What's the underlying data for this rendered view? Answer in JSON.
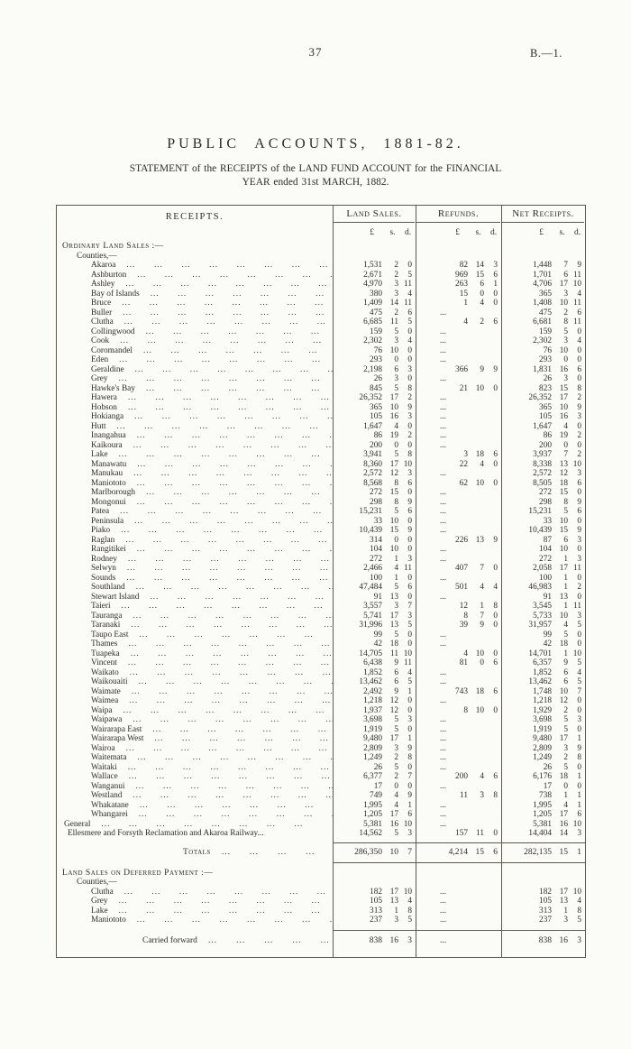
{
  "page": {
    "number": "37",
    "doc_ref": "B.—1."
  },
  "title": "PUBLIC ACCOUNTS, 1881-82.",
  "subtitle_line1": "STATEMENT of the RECEIPTS of the LAND FUND ACCOUNT for the FINANCIAL",
  "subtitle_line2": "YEAR ended 31st MARCH, 1882.",
  "table": {
    "receipts_header": "RECEIPTS.",
    "groups": [
      "Land Sales.",
      "Refunds.",
      "Net Receipts."
    ],
    "currency": [
      "£",
      "s.",
      "d."
    ],
    "empty_dots": "...",
    "dot_leader": "...  ...  ...  ...  ...  ...  ...  ...",
    "rows": [
      {
        "t": "h",
        "l": "Ordinary Land Sales :—",
        "cls": "ind-h",
        "sc": true
      },
      {
        "t": "s",
        "l": "Counties,—",
        "cls": "ind-s"
      },
      {
        "t": "r",
        "l": "Akaroa",
        "ls": [
          "1,531",
          "2",
          "0"
        ],
        "rf": [
          "82",
          "14",
          "3"
        ],
        "nt": [
          "1,448",
          "7",
          "9"
        ]
      },
      {
        "t": "r",
        "l": "Ashburton",
        "ls": [
          "2,671",
          "2",
          "5"
        ],
        "rf": [
          "969",
          "15",
          "6"
        ],
        "nt": [
          "1,701",
          "6",
          "11"
        ]
      },
      {
        "t": "r",
        "l": "Ashley",
        "ls": [
          "4,970",
          "3",
          "11"
        ],
        "rf": [
          "263",
          "6",
          "1"
        ],
        "nt": [
          "4,706",
          "17",
          "10"
        ]
      },
      {
        "t": "r",
        "l": "Bay of Islands",
        "ls": [
          "380",
          "3",
          "4"
        ],
        "rf": [
          "15",
          "0",
          "0"
        ],
        "nt": [
          "365",
          "3",
          "4"
        ]
      },
      {
        "t": "r",
        "l": "Bruce",
        "ls": [
          "1,409",
          "14",
          "11"
        ],
        "rf": [
          "1",
          "4",
          "0"
        ],
        "nt": [
          "1,408",
          "10",
          "11"
        ]
      },
      {
        "t": "r",
        "l": "Buller",
        "ls": [
          "475",
          "2",
          "6"
        ],
        "rf": null,
        "nt": [
          "475",
          "2",
          "6"
        ]
      },
      {
        "t": "r",
        "l": "Clutha",
        "ls": [
          "6,685",
          "11",
          "5"
        ],
        "rf": [
          "4",
          "2",
          "6"
        ],
        "nt": [
          "6,681",
          "8",
          "11"
        ]
      },
      {
        "t": "r",
        "l": "Collingwood",
        "ls": [
          "159",
          "5",
          "0"
        ],
        "rf": null,
        "nt": [
          "159",
          "5",
          "0"
        ]
      },
      {
        "t": "r",
        "l": "Cook",
        "ls": [
          "2,302",
          "3",
          "4"
        ],
        "rf": null,
        "nt": [
          "2,302",
          "3",
          "4"
        ]
      },
      {
        "t": "r",
        "l": "Coromandel",
        "ls": [
          "76",
          "10",
          "0"
        ],
        "rf": null,
        "nt": [
          "76",
          "10",
          "0"
        ]
      },
      {
        "t": "r",
        "l": "Eden",
        "ls": [
          "293",
          "0",
          "0"
        ],
        "rf": null,
        "nt": [
          "293",
          "0",
          "0"
        ]
      },
      {
        "t": "r",
        "l": "Geraldine",
        "ls": [
          "2,198",
          "6",
          "3"
        ],
        "rf": [
          "366",
          "9",
          "9"
        ],
        "nt": [
          "1,831",
          "16",
          "6"
        ]
      },
      {
        "t": "r",
        "l": "Grey",
        "ls": [
          "26",
          "3",
          "0"
        ],
        "rf": null,
        "nt": [
          "26",
          "3",
          "0"
        ]
      },
      {
        "t": "r",
        "l": "Hawke's Bay",
        "ls": [
          "845",
          "5",
          "8"
        ],
        "rf": [
          "21",
          "10",
          "0"
        ],
        "nt": [
          "823",
          "15",
          "8"
        ]
      },
      {
        "t": "r",
        "l": "Hawera",
        "ls": [
          "26,352",
          "17",
          "2"
        ],
        "rf": null,
        "nt": [
          "26,352",
          "17",
          "2"
        ]
      },
      {
        "t": "r",
        "l": "Hobson",
        "ls": [
          "365",
          "10",
          "9"
        ],
        "rf": null,
        "nt": [
          "365",
          "10",
          "9"
        ]
      },
      {
        "t": "r",
        "l": "Hokianga",
        "ls": [
          "105",
          "16",
          "3"
        ],
        "rf": null,
        "nt": [
          "105",
          "16",
          "3"
        ]
      },
      {
        "t": "r",
        "l": "Hutt",
        "ls": [
          "1,647",
          "4",
          "0"
        ],
        "rf": null,
        "nt": [
          "1,647",
          "4",
          "0"
        ]
      },
      {
        "t": "r",
        "l": "Inangahua",
        "ls": [
          "86",
          "19",
          "2"
        ],
        "rf": null,
        "nt": [
          "86",
          "19",
          "2"
        ]
      },
      {
        "t": "r",
        "l": "Kaikoura",
        "ls": [
          "200",
          "0",
          "0"
        ],
        "rf": null,
        "nt": [
          "200",
          "0",
          "0"
        ]
      },
      {
        "t": "r",
        "l": "Lake",
        "ls": [
          "3,941",
          "5",
          "8"
        ],
        "rf": [
          "3",
          "18",
          "6"
        ],
        "nt": [
          "3,937",
          "7",
          "2"
        ]
      },
      {
        "t": "r",
        "l": "Manawatu",
        "ls": [
          "8,360",
          "17",
          "10"
        ],
        "rf": [
          "22",
          "4",
          "0"
        ],
        "nt": [
          "8,338",
          "13",
          "10"
        ]
      },
      {
        "t": "r",
        "l": "Manukau",
        "ls": [
          "2,572",
          "12",
          "3"
        ],
        "rf": null,
        "nt": [
          "2,572",
          "12",
          "3"
        ]
      },
      {
        "t": "r",
        "l": "Maniototo",
        "ls": [
          "8,568",
          "8",
          "6"
        ],
        "rf": [
          "62",
          "10",
          "0"
        ],
        "nt": [
          "8,505",
          "18",
          "6"
        ]
      },
      {
        "t": "r",
        "l": "Marlborough",
        "ls": [
          "272",
          "15",
          "0"
        ],
        "rf": null,
        "nt": [
          "272",
          "15",
          "0"
        ]
      },
      {
        "t": "r",
        "l": "Mongonui",
        "ls": [
          "298",
          "8",
          "9"
        ],
        "rf": null,
        "nt": [
          "298",
          "8",
          "9"
        ]
      },
      {
        "t": "r",
        "l": "Patea",
        "ls": [
          "15,231",
          "5",
          "6"
        ],
        "rf": null,
        "nt": [
          "15,231",
          "5",
          "6"
        ]
      },
      {
        "t": "r",
        "l": "Peninsula",
        "ls": [
          "33",
          "10",
          "0"
        ],
        "rf": null,
        "nt": [
          "33",
          "10",
          "0"
        ]
      },
      {
        "t": "r",
        "l": "Piako",
        "ls": [
          "10,439",
          "15",
          "9"
        ],
        "rf": null,
        "nt": [
          "10,439",
          "15",
          "9"
        ]
      },
      {
        "t": "r",
        "l": "Raglan",
        "ls": [
          "314",
          "0",
          "0"
        ],
        "rf": [
          "226",
          "13",
          "9"
        ],
        "nt": [
          "87",
          "6",
          "3"
        ]
      },
      {
        "t": "r",
        "l": "Rangitikei",
        "ls": [
          "104",
          "10",
          "0"
        ],
        "rf": null,
        "nt": [
          "104",
          "10",
          "0"
        ]
      },
      {
        "t": "r",
        "l": "Rodney",
        "ls": [
          "272",
          "1",
          "3"
        ],
        "rf": null,
        "nt": [
          "272",
          "1",
          "3"
        ]
      },
      {
        "t": "r",
        "l": "Selwyn",
        "ls": [
          "2,466",
          "4",
          "11"
        ],
        "rf": [
          "407",
          "7",
          "0"
        ],
        "nt": [
          "2,058",
          "17",
          "11"
        ]
      },
      {
        "t": "r",
        "l": "Sounds",
        "ls": [
          "100",
          "1",
          "0"
        ],
        "rf": null,
        "nt": [
          "100",
          "1",
          "0"
        ]
      },
      {
        "t": "r",
        "l": "Southland",
        "ls": [
          "47,484",
          "5",
          "6"
        ],
        "rf": [
          "501",
          "4",
          "4"
        ],
        "nt": [
          "46,983",
          "1",
          "2"
        ]
      },
      {
        "t": "r",
        "l": "Stewart Island",
        "ls": [
          "91",
          "13",
          "0"
        ],
        "rf": null,
        "nt": [
          "91",
          "13",
          "0"
        ]
      },
      {
        "t": "r",
        "l": "Taieri",
        "ls": [
          "3,557",
          "3",
          "7"
        ],
        "rf": [
          "12",
          "1",
          "8"
        ],
        "nt": [
          "3,545",
          "1",
          "11"
        ]
      },
      {
        "t": "r",
        "l": "Tauranga",
        "ls": [
          "5,741",
          "17",
          "3"
        ],
        "rf": [
          "8",
          "7",
          "0"
        ],
        "nt": [
          "5,733",
          "10",
          "3"
        ]
      },
      {
        "t": "r",
        "l": "Taranaki",
        "ls": [
          "31,996",
          "13",
          "5"
        ],
        "rf": [
          "39",
          "9",
          "0"
        ],
        "nt": [
          "31,957",
          "4",
          "5"
        ]
      },
      {
        "t": "r",
        "l": "Taupo East",
        "ls": [
          "99",
          "5",
          "0"
        ],
        "rf": null,
        "nt": [
          "99",
          "5",
          "0"
        ]
      },
      {
        "t": "r",
        "l": "Thames",
        "ls": [
          "42",
          "18",
          "0"
        ],
        "rf": null,
        "nt": [
          "42",
          "18",
          "0"
        ]
      },
      {
        "t": "r",
        "l": "Tuapeka",
        "ls": [
          "14,705",
          "11",
          "10"
        ],
        "rf": [
          "4",
          "10",
          "0"
        ],
        "nt": [
          "14,701",
          "1",
          "10"
        ]
      },
      {
        "t": "r",
        "l": "Vincent",
        "ls": [
          "6,438",
          "9",
          "11"
        ],
        "rf": [
          "81",
          "0",
          "6"
        ],
        "nt": [
          "6,357",
          "9",
          "5"
        ]
      },
      {
        "t": "r",
        "l": "Waikato",
        "ls": [
          "1,852",
          "6",
          "4"
        ],
        "rf": null,
        "nt": [
          "1,852",
          "6",
          "4"
        ]
      },
      {
        "t": "r",
        "l": "Waikouaiti",
        "ls": [
          "13,462",
          "6",
          "5"
        ],
        "rf": null,
        "nt": [
          "13,462",
          "6",
          "5"
        ]
      },
      {
        "t": "r",
        "l": "Waimate",
        "ls": [
          "2,492",
          "9",
          "1"
        ],
        "rf": [
          "743",
          "18",
          "6"
        ],
        "nt": [
          "1,748",
          "10",
          "7"
        ]
      },
      {
        "t": "r",
        "l": "Waimea",
        "ls": [
          "1,218",
          "12",
          "0"
        ],
        "rf": null,
        "nt": [
          "1,218",
          "12",
          "0"
        ]
      },
      {
        "t": "r",
        "l": "Waipa",
        "ls": [
          "1,937",
          "12",
          "0"
        ],
        "rf": [
          "8",
          "10",
          "0"
        ],
        "nt": [
          "1,929",
          "2",
          "0"
        ]
      },
      {
        "t": "r",
        "l": "Waipawa",
        "ls": [
          "3,698",
          "5",
          "3"
        ],
        "rf": null,
        "nt": [
          "3,698",
          "5",
          "3"
        ]
      },
      {
        "t": "r",
        "l": "Wairarapa East",
        "ls": [
          "1,919",
          "5",
          "0"
        ],
        "rf": null,
        "nt": [
          "1,919",
          "5",
          "0"
        ]
      },
      {
        "t": "r",
        "l": "Wairarapa West",
        "ls": [
          "9,480",
          "17",
          "1"
        ],
        "rf": null,
        "nt": [
          "9,480",
          "17",
          "1"
        ]
      },
      {
        "t": "r",
        "l": "Wairoa",
        "ls": [
          "2,809",
          "3",
          "9"
        ],
        "rf": null,
        "nt": [
          "2,809",
          "3",
          "9"
        ]
      },
      {
        "t": "r",
        "l": "Waitemata",
        "ls": [
          "1,249",
          "2",
          "8"
        ],
        "rf": null,
        "nt": [
          "1,249",
          "2",
          "8"
        ]
      },
      {
        "t": "r",
        "l": "Waitaki",
        "ls": [
          "26",
          "5",
          "0"
        ],
        "rf": null,
        "nt": [
          "26",
          "5",
          "0"
        ]
      },
      {
        "t": "r",
        "l": "Wallace",
        "ls": [
          "6,377",
          "2",
          "7"
        ],
        "rf": [
          "200",
          "4",
          "6"
        ],
        "nt": [
          "6,176",
          "18",
          "1"
        ]
      },
      {
        "t": "r",
        "l": "Wanganui",
        "ls": [
          "17",
          "0",
          "0"
        ],
        "rf": null,
        "nt": [
          "17",
          "0",
          "0"
        ]
      },
      {
        "t": "r",
        "l": "Westland",
        "ls": [
          "749",
          "4",
          "9"
        ],
        "rf": [
          "11",
          "3",
          "8"
        ],
        "nt": [
          "738",
          "1",
          "1"
        ]
      },
      {
        "t": "r",
        "l": "Whakatane",
        "ls": [
          "1,995",
          "4",
          "1"
        ],
        "rf": null,
        "nt": [
          "1,995",
          "4",
          "1"
        ]
      },
      {
        "t": "r",
        "l": "Whangarei",
        "ls": [
          "1,205",
          "17",
          "6"
        ],
        "rf": null,
        "nt": [
          "1,205",
          "17",
          "6"
        ]
      },
      {
        "t": "r",
        "l": "General",
        "cls": "ind-g",
        "ls": [
          "5,381",
          "16",
          "10"
        ],
        "rf": null,
        "nt": [
          "5,381",
          "16",
          "10"
        ]
      },
      {
        "t": "r",
        "l": "Ellesmere and Forsyth Reclamation and Akaroa Railway...",
        "cls": "ind-e",
        "leader": false,
        "ls": [
          "14,562",
          "5",
          "3"
        ],
        "rf": [
          "157",
          "11",
          "0"
        ],
        "nt": [
          "14,404",
          "14",
          "3"
        ]
      },
      {
        "t": "rule",
        "rcls": "mt4"
      },
      {
        "t": "tot",
        "l": "Totals",
        "cls": "ind-tot",
        "sc": true,
        "ls": [
          "286,350",
          "10",
          "7"
        ],
        "rf": [
          "4,214",
          "15",
          "6"
        ],
        "nt": [
          "282,135",
          "15",
          "1"
        ]
      },
      {
        "t": "rule"
      },
      {
        "t": "h",
        "l": "Land Sales on Deferred Payment :—",
        "cls": "ind-h",
        "sc": true,
        "rcls": "mt6"
      },
      {
        "t": "s",
        "l": "Counties,—",
        "cls": "ind-s"
      },
      {
        "t": "r",
        "l": "Clutha",
        "ls": [
          "182",
          "17",
          "10"
        ],
        "rf": null,
        "nt": [
          "182",
          "17",
          "10"
        ]
      },
      {
        "t": "r",
        "l": "Grey",
        "ls": [
          "105",
          "13",
          "4"
        ],
        "rf": null,
        "nt": [
          "105",
          "13",
          "4"
        ]
      },
      {
        "t": "r",
        "l": "Lake",
        "ls": [
          "313",
          "1",
          "8"
        ],
        "rf": null,
        "nt": [
          "313",
          "1",
          "8"
        ]
      },
      {
        "t": "r",
        "l": "Maniototo",
        "ls": [
          "237",
          "3",
          "5"
        ],
        "rf": null,
        "nt": [
          "237",
          "3",
          "5"
        ]
      },
      {
        "t": "rule",
        "rcls": "mt5"
      },
      {
        "t": "cf",
        "l": "Carried forward",
        "cls": "ind-cf",
        "ls": [
          "838",
          "16",
          "3"
        ],
        "rf": null,
        "nt": [
          "838",
          "16",
          "3"
        ]
      }
    ]
  }
}
